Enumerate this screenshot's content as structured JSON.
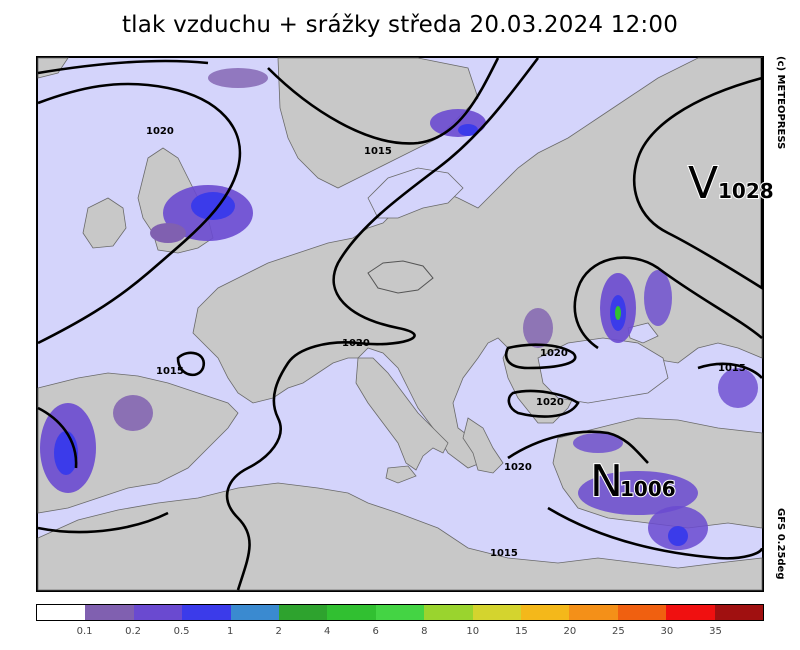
{
  "title": "tlak vzduchu + srážky  středa 20.03.2024 12:00",
  "credits": {
    "top": "(c) METEOPRESS",
    "bottom": "GFS  0.25deg"
  },
  "colors": {
    "land": "#c8c8c8",
    "sea_background": "#d4d4fb",
    "coast": "#606060",
    "isobar": "#000000"
  },
  "pressure_labels": [
    {
      "text": "1020"
    },
    {
      "text": "1015"
    },
    {
      "text": "1020"
    },
    {
      "text": "1015"
    },
    {
      "text": "1020"
    },
    {
      "text": "1020"
    },
    {
      "text": "1020"
    },
    {
      "text": "1015"
    },
    {
      "text": "1015"
    }
  ],
  "pressure_centers": [
    {
      "letter": "V",
      "value": "1028"
    },
    {
      "letter": "N",
      "value": "1006"
    }
  ],
  "legend": {
    "colors": [
      "#ffffff",
      "#8060b0",
      "#6a4ad0",
      "#3b3bea",
      "#3a8ad0",
      "#2ea32e",
      "#31c031",
      "#44d444",
      "#9ad42e",
      "#d4d42e",
      "#f4b81a",
      "#f49018",
      "#f06010",
      "#f01010",
      "#a01010"
    ],
    "labels": [
      "0.1",
      "0.2",
      "0.5",
      "1",
      "2",
      "4",
      "6",
      "8",
      "10",
      "15",
      "20",
      "25",
      "30",
      "35"
    ]
  }
}
